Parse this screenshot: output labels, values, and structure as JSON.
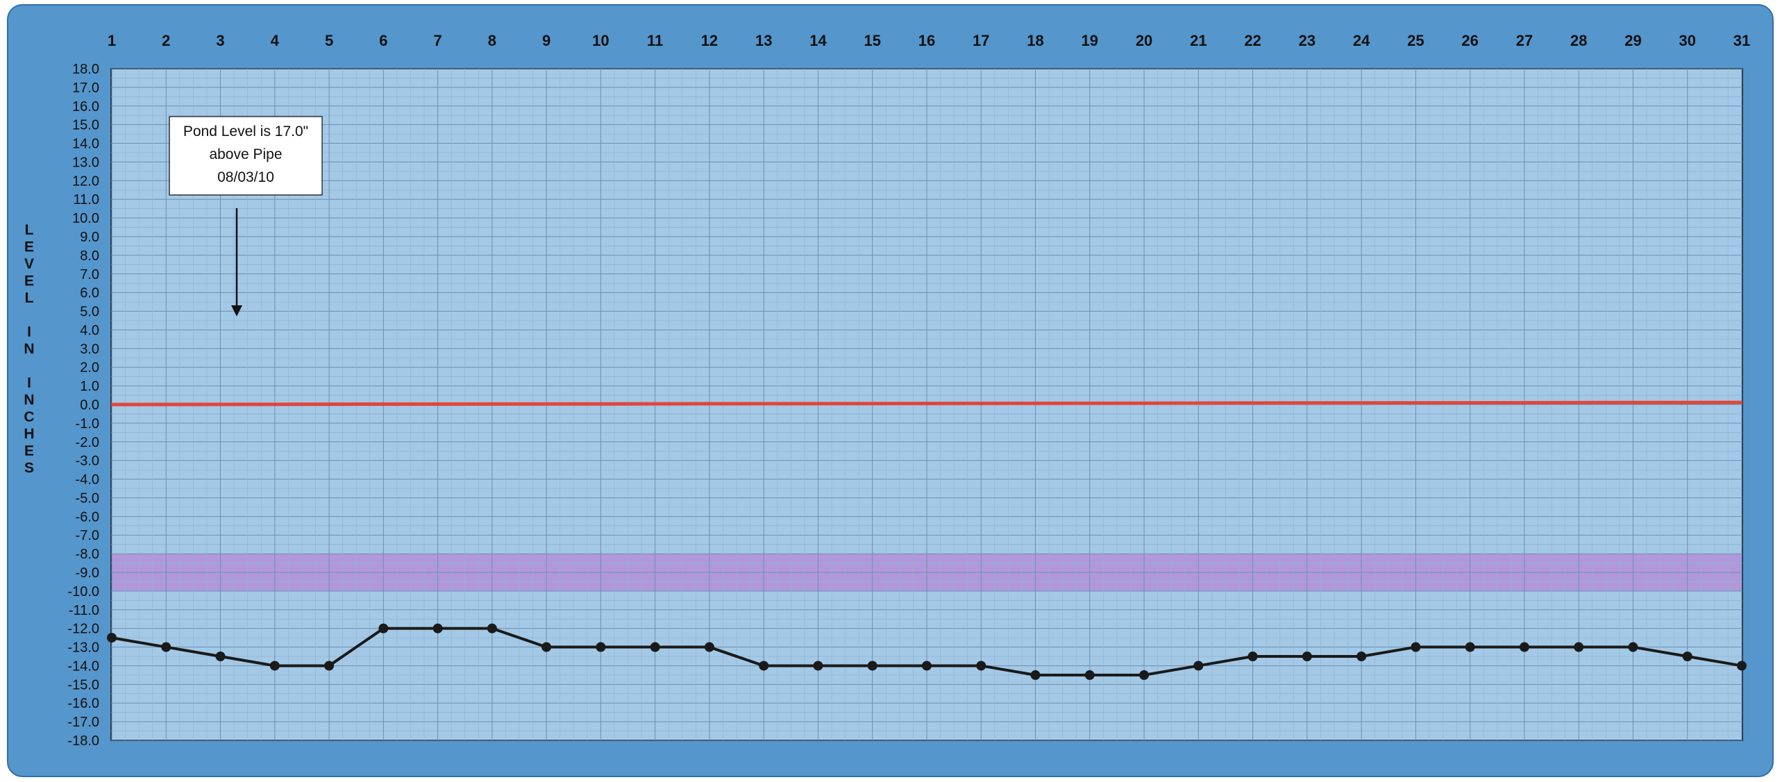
{
  "chart_data": {
    "type": "line",
    "title": "",
    "xlabel": "",
    "ylabel": "LEVEL IN INCHES",
    "ylabel_letters": [
      "L",
      "E",
      "V",
      "E",
      "L",
      "",
      "I",
      "N",
      "",
      "I",
      "N",
      "C",
      "H",
      "E",
      "S"
    ],
    "categories": [
      "1",
      "2",
      "3",
      "4",
      "5",
      "6",
      "7",
      "8",
      "9",
      "10",
      "11",
      "12",
      "13",
      "14",
      "15",
      "16",
      "17",
      "18",
      "19",
      "20",
      "21",
      "22",
      "23",
      "24",
      "25",
      "26",
      "27",
      "28",
      "29",
      "30",
      "31"
    ],
    "series": [
      {
        "name": "",
        "color": "#1a1a1a",
        "values": [
          -12.5,
          -13.0,
          -13.5,
          -14.0,
          -14.0,
          -12.0,
          -12.0,
          -12.0,
          -13.0,
          -13.0,
          -13.0,
          -13.0,
          -14.0,
          -14.0,
          -14.0,
          -14.0,
          -14.0,
          -14.5,
          -14.5,
          -14.5,
          -14.0,
          -13.5,
          -13.5,
          -13.5,
          -13.0,
          -13.0,
          -13.0,
          -13.0,
          -13.0,
          -13.5,
          -14.0
        ]
      }
    ],
    "reference_line": {
      "value": 0.0,
      "color": "#e0463a"
    },
    "band": {
      "from": -10.0,
      "to": -8.0,
      "color": "#b48fd8"
    },
    "ylim": [
      -18.0,
      18.0
    ],
    "ytick_step": 1.0,
    "grid": true,
    "annotation": {
      "lines": [
        "Pond Level is 17.0\"",
        "above Pipe",
        "08/03/10"
      ],
      "arrow": true
    },
    "colors": {
      "frame": "#5596cc",
      "plot_background": "#a3c9e6",
      "major_grid": "#6e8fb0",
      "minor_grid": "#8fb3d2"
    }
  }
}
